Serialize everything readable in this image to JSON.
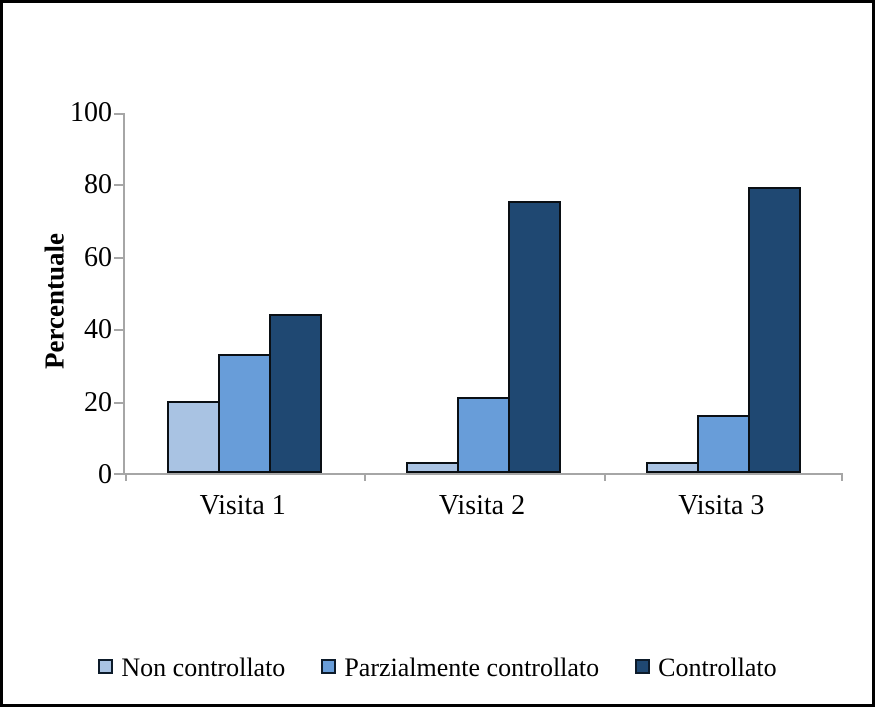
{
  "chart_data": {
    "type": "bar",
    "title": "",
    "categories": [
      "Visita 1",
      "Visita 2",
      "Visita 3"
    ],
    "series": [
      {
        "name": "Non controllato",
        "color": "#A9C3E3",
        "values": [
          20,
          3,
          3
        ]
      },
      {
        "name": "Parzialmente controllato",
        "color": "#689DD9",
        "values": [
          33,
          21,
          16
        ]
      },
      {
        "name": "Controllato",
        "color": "#1F4872",
        "values": [
          44,
          75,
          79
        ]
      }
    ],
    "xlabel": "",
    "ylabel": "Percentuale",
    "ylim": [
      0,
      100
    ],
    "yticks": [
      0,
      20,
      40,
      60,
      80,
      100
    ],
    "grid": false,
    "legend_position": "bottom",
    "axis_color": "#A6A6A6",
    "bar_border_color": "#0a0f14"
  }
}
